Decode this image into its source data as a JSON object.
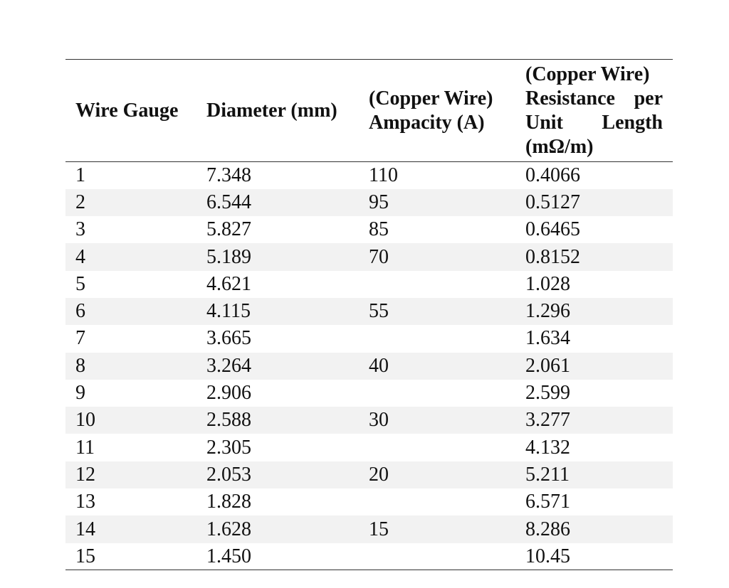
{
  "table": {
    "headers": {
      "gauge": "Wire Gauge",
      "diameter": "Diameter (mm)",
      "ampacity_line1": "(Copper Wire)",
      "ampacity_line2": "Ampacity (A)",
      "resistance_line1": "(Copper Wire)",
      "resistance_line2": "Resistance per",
      "resistance_line3": "Unit    Length",
      "resistance_line4": "(mΩ/m)"
    },
    "rows": [
      {
        "gauge": "1",
        "diameter": "7.348",
        "ampacity": "110",
        "resistance": "0.4066"
      },
      {
        "gauge": "2",
        "diameter": "6.544",
        "ampacity": "95",
        "resistance": "0.5127"
      },
      {
        "gauge": "3",
        "diameter": "5.827",
        "ampacity": "85",
        "resistance": "0.6465"
      },
      {
        "gauge": "4",
        "diameter": "5.189",
        "ampacity": "70",
        "resistance": "0.8152"
      },
      {
        "gauge": "5",
        "diameter": "4.621",
        "ampacity": "",
        "resistance": "1.028"
      },
      {
        "gauge": "6",
        "diameter": "4.115",
        "ampacity": "55",
        "resistance": "1.296"
      },
      {
        "gauge": "7",
        "diameter": "3.665",
        "ampacity": "",
        "resistance": "1.634"
      },
      {
        "gauge": "8",
        "diameter": "3.264",
        "ampacity": "40",
        "resistance": "2.061"
      },
      {
        "gauge": "9",
        "diameter": "2.906",
        "ampacity": "",
        "resistance": "2.599"
      },
      {
        "gauge": "10",
        "diameter": "2.588",
        "ampacity": "30",
        "resistance": "3.277"
      },
      {
        "gauge": "11",
        "diameter": "2.305",
        "ampacity": "",
        "resistance": "4.132"
      },
      {
        "gauge": "12",
        "diameter": "2.053",
        "ampacity": "20",
        "resistance": "5.211"
      },
      {
        "gauge": "13",
        "diameter": "1.828",
        "ampacity": "",
        "resistance": "6.571"
      },
      {
        "gauge": "14",
        "diameter": "1.628",
        "ampacity": "15",
        "resistance": "8.286"
      },
      {
        "gauge": "15",
        "diameter": "1.450",
        "ampacity": "",
        "resistance": "10.45"
      }
    ]
  }
}
